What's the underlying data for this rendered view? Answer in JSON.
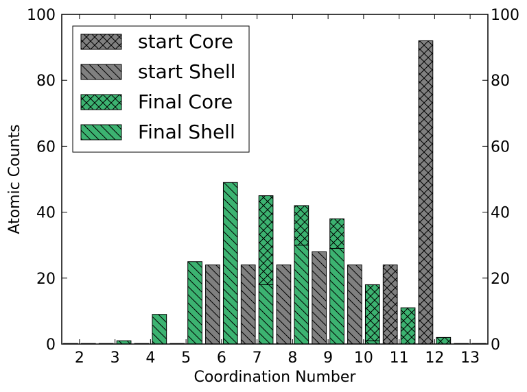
{
  "chart_data": {
    "type": "bar",
    "xlabel": "Coordination Number",
    "ylabel": "Atomic Counts",
    "xlim": [
      1.5,
      13.5
    ],
    "ylim": [
      0,
      100
    ],
    "x_ticks": [
      "2",
      "3",
      "4",
      "5",
      "6",
      "7",
      "8",
      "9",
      "10",
      "11",
      "12",
      "13"
    ],
    "y_ticks": [
      "0",
      "20",
      "40",
      "60",
      "80",
      "100"
    ],
    "y_ticks_right": [
      "0",
      "20",
      "40",
      "60",
      "80",
      "100"
    ],
    "grid": false,
    "legend_position": "top-left",
    "stacking": "core bars sit on top of shell bars within each group",
    "groups": [
      {
        "name": "start",
        "offset": -0.25,
        "color": "#808080"
      },
      {
        "name": "Final",
        "offset": 0.25,
        "color": "#3cb371"
      }
    ],
    "series": [
      {
        "name": "start Core",
        "group": "start",
        "part": "core",
        "hatch": "x",
        "x": [
          2,
          3,
          4,
          5,
          6,
          7,
          8,
          9,
          10,
          11,
          12,
          13
        ],
        "values": [
          0,
          0,
          0,
          0,
          0,
          0,
          0,
          0,
          0,
          24,
          92,
          0
        ]
      },
      {
        "name": "start Shell",
        "group": "start",
        "part": "shell",
        "hatch": "\\",
        "x": [
          2,
          3,
          4,
          5,
          6,
          7,
          8,
          9,
          10,
          11,
          12,
          13
        ],
        "values": [
          0,
          0,
          0,
          0,
          24,
          24,
          24,
          28,
          24,
          0,
          0,
          0
        ]
      },
      {
        "name": "Final Core",
        "group": "Final",
        "part": "core",
        "hatch": "x",
        "x": [
          2,
          3,
          4,
          5,
          6,
          7,
          8,
          9,
          10,
          11,
          12,
          13
        ],
        "values": [
          0,
          0,
          0,
          0,
          0,
          27,
          12,
          9,
          17,
          11,
          2,
          0
        ]
      },
      {
        "name": "Final Shell",
        "group": "Final",
        "part": "shell",
        "hatch": "\\",
        "x": [
          2,
          3,
          4,
          5,
          6,
          7,
          8,
          9,
          10,
          11,
          12,
          13
        ],
        "values": [
          0,
          1,
          9,
          25,
          49,
          18,
          30,
          29,
          1,
          0,
          0,
          0
        ]
      }
    ]
  }
}
